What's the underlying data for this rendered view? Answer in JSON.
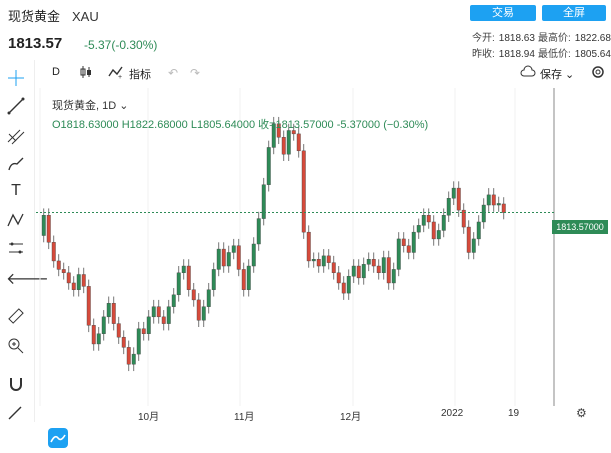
{
  "header": {
    "title": "现货黄金",
    "symbol": "XAU",
    "price": "1813.57",
    "change": "-5.37(-0.30%)",
    "buttons": [
      "交易",
      "全屏"
    ],
    "stats": {
      "open_label": "今开:",
      "open": "1818.63",
      "high_label": "最高价:",
      "high": "1822.68",
      "prev_label": "昨收:",
      "prev": "1818.94",
      "low_label": "最低价:",
      "low": "1805.64"
    }
  },
  "toolbar": {
    "interval": "D",
    "indicators": "指标",
    "save": "保存"
  },
  "legend": {
    "name": "现货黄金, 1D",
    "ohlc": "O1818.63000  H1822.68000  L1805.64000  收=1813.57000  -5.37000 (−0.30%)"
  },
  "axis": {
    "price_label": "1813.57000",
    "x_labels": [
      "10月",
      "11月",
      "12月",
      "2022",
      "19"
    ]
  },
  "colors": {
    "up": "#2e8b57",
    "down": "#d64a3b",
    "accent": "#1da1f2"
  },
  "chart_data": {
    "type": "candlestick",
    "last_close": 1813.57,
    "candles": [
      {
        "o": 1800,
        "c": 1812
      },
      {
        "o": 1812,
        "c": 1796
      },
      {
        "o": 1796,
        "c": 1785
      },
      {
        "o": 1785,
        "c": 1780
      },
      {
        "o": 1780,
        "c": 1778
      },
      {
        "o": 1778,
        "c": 1772
      },
      {
        "o": 1772,
        "c": 1768
      },
      {
        "o": 1768,
        "c": 1777
      },
      {
        "o": 1777,
        "c": 1770
      },
      {
        "o": 1770,
        "c": 1747
      },
      {
        "o": 1747,
        "c": 1736
      },
      {
        "o": 1736,
        "c": 1742
      },
      {
        "o": 1742,
        "c": 1752
      },
      {
        "o": 1752,
        "c": 1760
      },
      {
        "o": 1760,
        "c": 1748
      },
      {
        "o": 1748,
        "c": 1740
      },
      {
        "o": 1740,
        "c": 1734
      },
      {
        "o": 1734,
        "c": 1724
      },
      {
        "o": 1724,
        "c": 1730
      },
      {
        "o": 1730,
        "c": 1745
      },
      {
        "o": 1745,
        "c": 1742
      },
      {
        "o": 1742,
        "c": 1752
      },
      {
        "o": 1752,
        "c": 1758
      },
      {
        "o": 1758,
        "c": 1752
      },
      {
        "o": 1752,
        "c": 1748
      },
      {
        "o": 1748,
        "c": 1758
      },
      {
        "o": 1758,
        "c": 1765
      },
      {
        "o": 1765,
        "c": 1778
      },
      {
        "o": 1778,
        "c": 1782
      },
      {
        "o": 1782,
        "c": 1768
      },
      {
        "o": 1768,
        "c": 1762
      },
      {
        "o": 1762,
        "c": 1750
      },
      {
        "o": 1750,
        "c": 1758
      },
      {
        "o": 1758,
        "c": 1768
      },
      {
        "o": 1768,
        "c": 1780
      },
      {
        "o": 1780,
        "c": 1792
      },
      {
        "o": 1792,
        "c": 1782
      },
      {
        "o": 1782,
        "c": 1790
      },
      {
        "o": 1790,
        "c": 1794
      },
      {
        "o": 1794,
        "c": 1780
      },
      {
        "o": 1780,
        "c": 1768
      },
      {
        "o": 1768,
        "c": 1782
      },
      {
        "o": 1782,
        "c": 1795
      },
      {
        "o": 1795,
        "c": 1810
      },
      {
        "o": 1810,
        "c": 1830
      },
      {
        "o": 1830,
        "c": 1852
      },
      {
        "o": 1852,
        "c": 1866
      },
      {
        "o": 1866,
        "c": 1858
      },
      {
        "o": 1858,
        "c": 1848
      },
      {
        "o": 1848,
        "c": 1862
      },
      {
        "o": 1862,
        "c": 1860
      },
      {
        "o": 1860,
        "c": 1850
      },
      {
        "o": 1850,
        "c": 1802
      },
      {
        "o": 1802,
        "c": 1785
      },
      {
        "o": 1785,
        "c": 1786
      },
      {
        "o": 1786,
        "c": 1782
      },
      {
        "o": 1782,
        "c": 1788
      },
      {
        "o": 1788,
        "c": 1784
      },
      {
        "o": 1784,
        "c": 1778
      },
      {
        "o": 1778,
        "c": 1772
      },
      {
        "o": 1772,
        "c": 1766
      },
      {
        "o": 1766,
        "c": 1776
      },
      {
        "o": 1776,
        "c": 1782
      },
      {
        "o": 1782,
        "c": 1775
      },
      {
        "o": 1775,
        "c": 1783
      },
      {
        "o": 1783,
        "c": 1786
      },
      {
        "o": 1786,
        "c": 1782
      },
      {
        "o": 1782,
        "c": 1778
      },
      {
        "o": 1778,
        "c": 1787
      },
      {
        "o": 1787,
        "c": 1772
      },
      {
        "o": 1772,
        "c": 1780
      },
      {
        "o": 1780,
        "c": 1798
      },
      {
        "o": 1798,
        "c": 1794
      },
      {
        "o": 1794,
        "c": 1790
      },
      {
        "o": 1790,
        "c": 1802
      },
      {
        "o": 1802,
        "c": 1806
      },
      {
        "o": 1806,
        "c": 1812
      },
      {
        "o": 1812,
        "c": 1808
      },
      {
        "o": 1808,
        "c": 1798
      },
      {
        "o": 1798,
        "c": 1803
      },
      {
        "o": 1803,
        "c": 1812
      },
      {
        "o": 1812,
        "c": 1822
      },
      {
        "o": 1822,
        "c": 1828
      },
      {
        "o": 1828,
        "c": 1815
      },
      {
        "o": 1815,
        "c": 1805
      },
      {
        "o": 1805,
        "c": 1790
      },
      {
        "o": 1790,
        "c": 1798
      },
      {
        "o": 1798,
        "c": 1808
      },
      {
        "o": 1808,
        "c": 1818
      },
      {
        "o": 1818,
        "c": 1824
      },
      {
        "o": 1824,
        "c": 1818
      },
      {
        "o": 1818,
        "c": 1818.94
      },
      {
        "o": 1818.63,
        "c": 1813.57
      }
    ],
    "y_range": [
      1710,
      1880
    ]
  }
}
